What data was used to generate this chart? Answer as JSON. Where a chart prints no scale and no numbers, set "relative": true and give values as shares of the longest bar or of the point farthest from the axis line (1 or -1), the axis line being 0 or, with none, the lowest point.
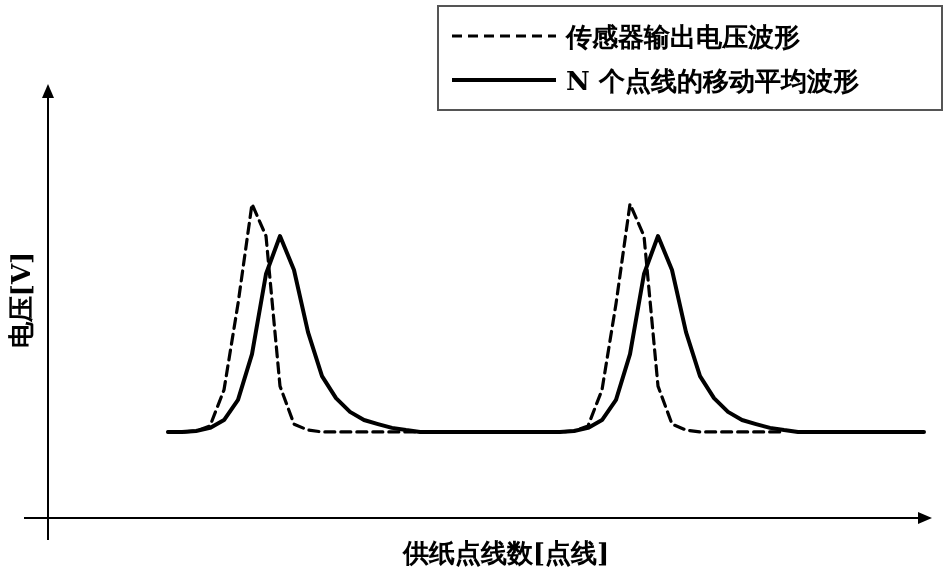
{
  "chart_data": {
    "type": "line",
    "relative": true,
    "xlabel": "供纸点线数[点线]",
    "ylabel": "电压[V]",
    "legend": "top right",
    "categories": [
      null,
      null,
      null,
      null,
      null,
      null,
      null,
      null,
      null,
      null,
      null,
      null,
      null,
      null,
      null,
      null,
      null,
      null,
      null,
      null,
      null,
      null,
      null,
      null,
      null,
      null,
      null,
      null,
      null,
      null,
      null,
      null,
      null,
      null,
      null,
      null,
      null,
      null,
      null,
      null,
      null,
      null,
      null,
      null,
      null,
      null,
      null,
      null,
      null,
      null,
      null,
      null,
      null,
      null,
      null
    ],
    "series": [
      {
        "name": "传感器输出电压波形",
        "color": "#000000",
        "line_style": "dashed",
        "values": [
          0.274,
          0.274,
          0.277,
          0.293,
          0.408,
          0.682,
          1,
          0.898,
          0.42,
          0.299,
          0.28,
          0.274,
          0.274,
          0.274,
          0.274,
          0.274,
          0.274,
          0.274,
          0.274,
          0.274,
          0.274,
          0.274,
          0.274,
          0.274,
          0.274,
          0.274,
          0.274,
          0.274,
          0.274,
          0.277,
          0.293,
          0.408,
          0.682,
          1,
          0.898,
          0.42,
          0.299,
          0.28,
          0.274,
          0.274,
          0.274,
          0.274,
          0.274,
          0.274,
          0.274,
          null,
          null,
          null,
          null,
          null,
          null,
          null,
          null,
          null,
          null
        ]
      },
      {
        "name": "N 个点线的移动平均波形",
        "color": "#000000",
        "line_style": "solid",
        "values": [
          0.274,
          0.274,
          0.277,
          0.287,
          0.312,
          0.376,
          0.522,
          0.777,
          0.898,
          0.79,
          0.592,
          0.452,
          0.382,
          0.338,
          0.312,
          0.299,
          0.287,
          0.28,
          0.274,
          0.274,
          0.274,
          0.274,
          0.274,
          0.274,
          0.274,
          0.274,
          0.274,
          0.274,
          0.274,
          0.277,
          0.287,
          0.312,
          0.376,
          0.522,
          0.777,
          0.898,
          0.79,
          0.592,
          0.452,
          0.382,
          0.338,
          0.312,
          0.299,
          0.287,
          0.28,
          0.274,
          0.274,
          0.274,
          0.274,
          0.274,
          0.274,
          0.274,
          0.274,
          0.274,
          0.274
        ]
      }
    ]
  }
}
